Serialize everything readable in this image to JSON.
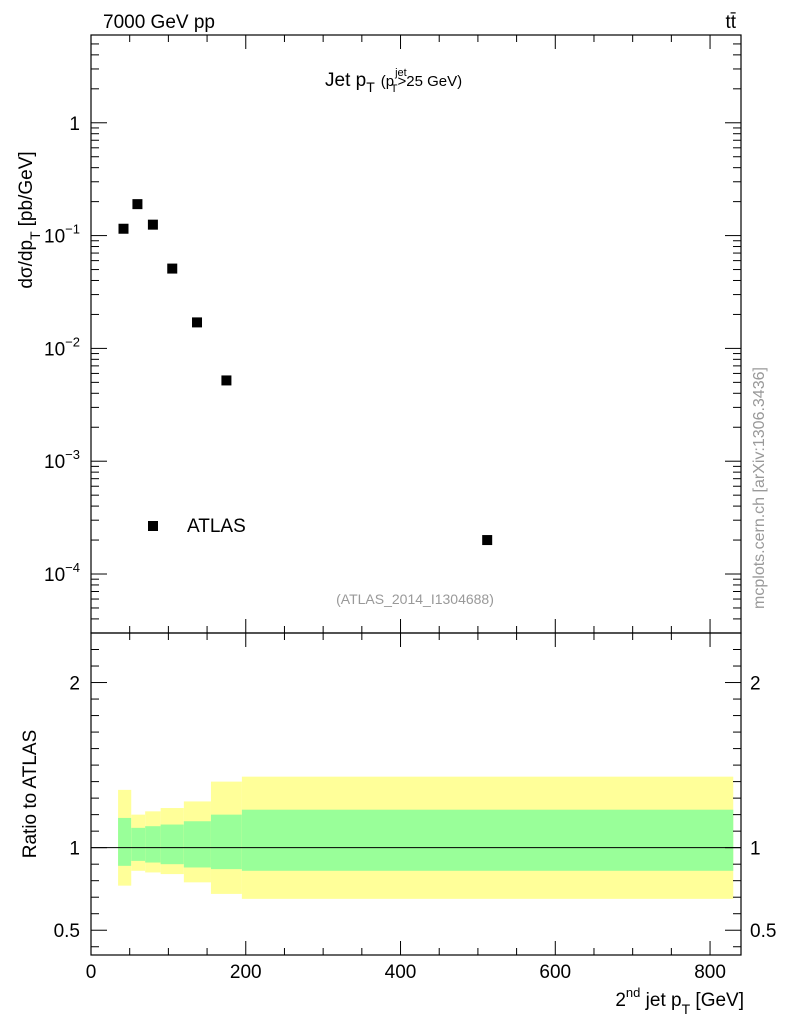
{
  "header": {
    "energy": "7000 GeV pp",
    "process": "tt̄"
  },
  "plot": {
    "title_main": "Jet p",
    "title_main_sub": "T",
    "title_cut_open": "(p",
    "title_cut_sup": "jet",
    "title_cut_sub": "T",
    "title_cut_close": ">25 GeV)",
    "legend_label": "ATLAS",
    "analysis_id": "(ATLAS_2014_I1304688)",
    "watermark": "mcplots.cern.ch [arXiv:1306.3436]"
  },
  "chart_data": [
    {
      "type": "scatter",
      "ylabel": "dσ/dp_T [pb/GeV]",
      "ylabel_parts": {
        "d": "d",
        "sigma": "σ",
        "mid": "/dp",
        "sub": "T",
        "unit": "[pb/GeV]"
      },
      "xlabel": "2nd jet p_T [GeV]",
      "xlabel_parts": {
        "two": "2",
        "sup": "nd",
        "rest": " jet p",
        "sub": "T",
        "unit": " [GeV]"
      },
      "xlim": [
        0,
        840
      ],
      "ylim": [
        3e-05,
        6
      ],
      "yscale": "log",
      "yticks": [
        {
          "value": 1,
          "label": "1",
          "base": "",
          "exp": ""
        },
        {
          "value": 0.1,
          "label": "",
          "base": "10",
          "exp": "−1"
        },
        {
          "value": 0.01,
          "label": "",
          "base": "10",
          "exp": "−2"
        },
        {
          "value": 0.001,
          "label": "",
          "base": "10",
          "exp": "−3"
        },
        {
          "value": 0.0001,
          "label": "",
          "base": "10",
          "exp": "−4"
        }
      ],
      "series": [
        {
          "name": "ATLAS",
          "marker": "square",
          "color": "#000000",
          "points": [
            {
              "x": 42,
              "y": 0.115
            },
            {
              "x": 60,
              "y": 0.19
            },
            {
              "x": 80,
              "y": 0.125
            },
            {
              "x": 105,
              "y": 0.051
            },
            {
              "x": 137,
              "y": 0.017
            },
            {
              "x": 175,
              "y": 0.0052
            },
            {
              "x": 512,
              "y": 0.0002
            }
          ]
        }
      ]
    },
    {
      "type": "area",
      "ylabel": "Ratio to ATLAS",
      "xlim": [
        0,
        840
      ],
      "ylim": [
        0.35,
        2.3
      ],
      "xticks": [
        0,
        200,
        400,
        600,
        800
      ],
      "yticks": [
        0.5,
        1,
        2
      ],
      "reference_line": 1,
      "bands": [
        {
          "edges": [
            35,
            52
          ],
          "inner": [
            0.89,
            1.18
          ],
          "outer": [
            0.77,
            1.35
          ]
        },
        {
          "edges": [
            52,
            70
          ],
          "inner": [
            0.92,
            1.12
          ],
          "outer": [
            0.86,
            1.2
          ]
        },
        {
          "edges": [
            70,
            90
          ],
          "inner": [
            0.91,
            1.13
          ],
          "outer": [
            0.85,
            1.22
          ]
        },
        {
          "edges": [
            90,
            120
          ],
          "inner": [
            0.9,
            1.14
          ],
          "outer": [
            0.84,
            1.24
          ]
        },
        {
          "edges": [
            120,
            155
          ],
          "inner": [
            0.88,
            1.16
          ],
          "outer": [
            0.79,
            1.28
          ]
        },
        {
          "edges": [
            155,
            195
          ],
          "inner": [
            0.87,
            1.2
          ],
          "outer": [
            0.72,
            1.4
          ]
        },
        {
          "edges": [
            195,
            830
          ],
          "inner": [
            0.86,
            1.23
          ],
          "outer": [
            0.69,
            1.43
          ]
        }
      ],
      "colors": {
        "inner": "#99ff99",
        "outer": "#ffff99"
      }
    }
  ]
}
